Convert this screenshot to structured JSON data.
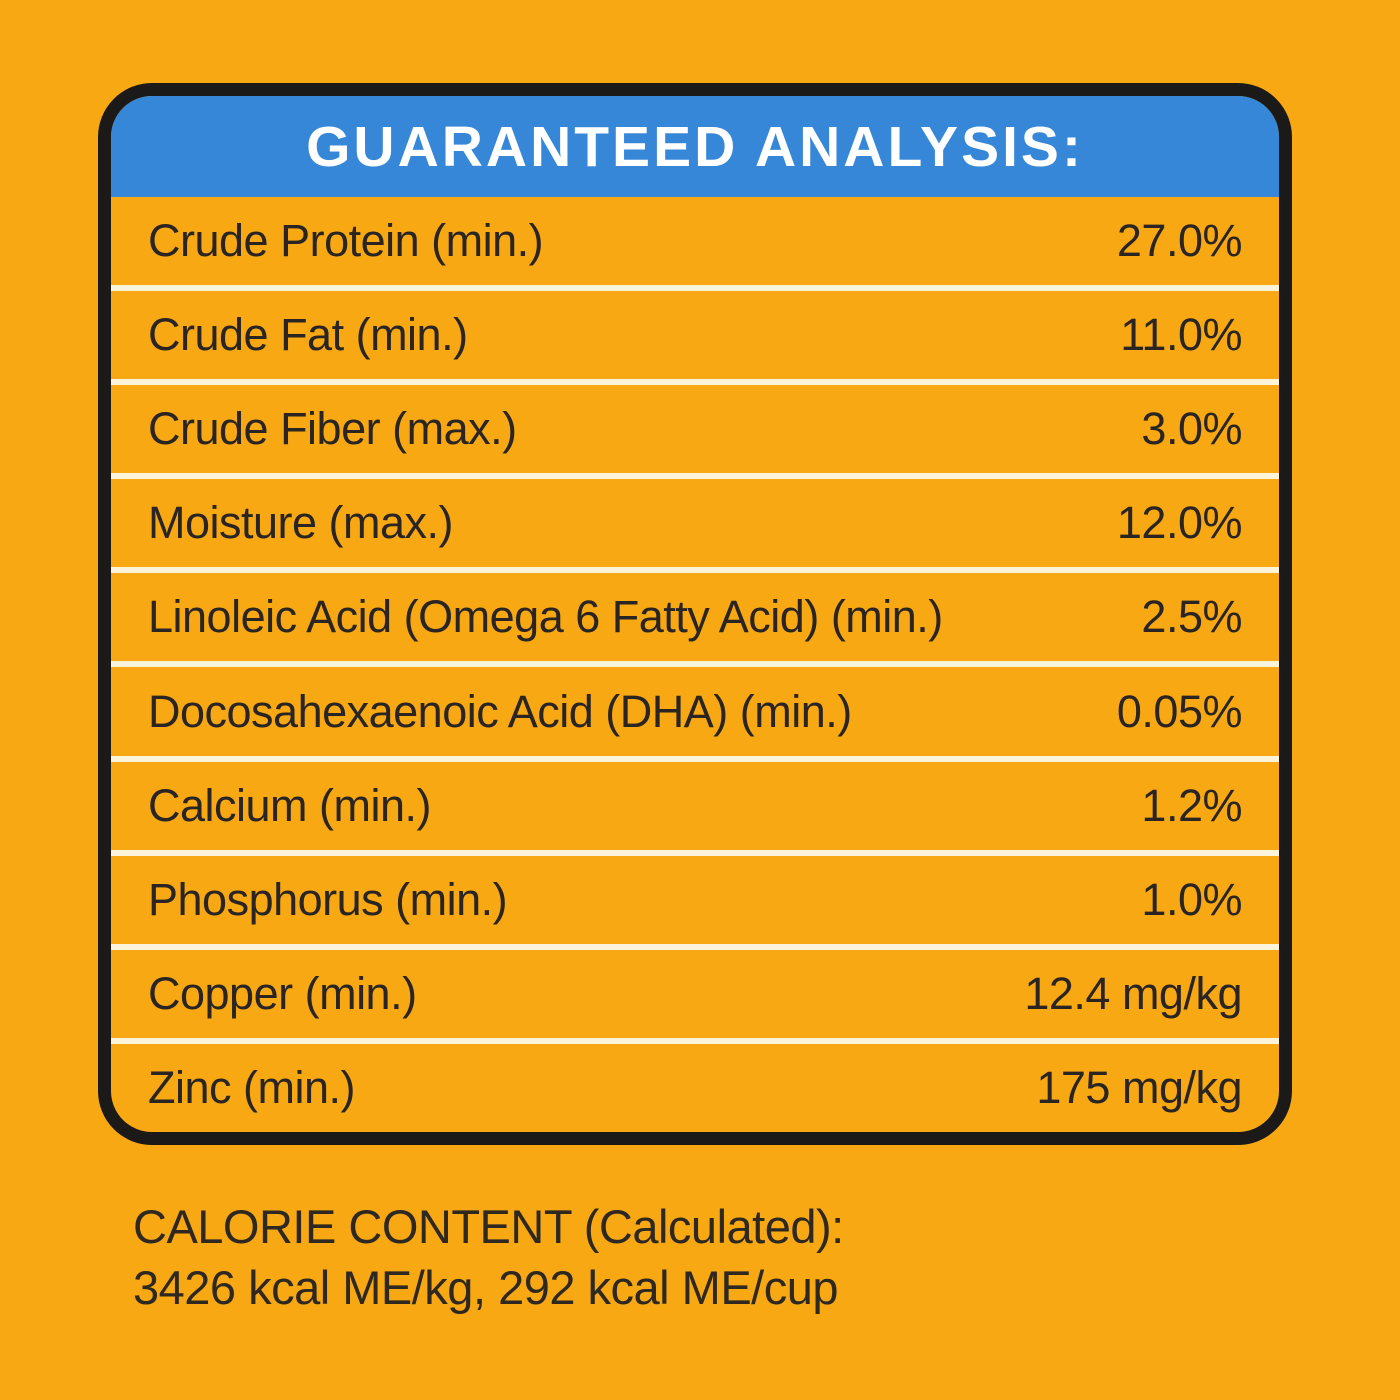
{
  "colors": {
    "background": "#F7A812",
    "header_background": "#3787D8",
    "header_text": "#FFFFFF",
    "row_text": "#2A2522",
    "row_separator": "#FBF4DB",
    "panel_border": "#1C1A18"
  },
  "header": {
    "title": "GUARANTEED ANALYSIS:"
  },
  "analysis": {
    "rows": [
      {
        "label": "Crude Protein (min.)",
        "value": "27.0%"
      },
      {
        "label": "Crude Fat (min.)",
        "value": "11.0%"
      },
      {
        "label": "Crude Fiber (max.)",
        "value": "3.0%"
      },
      {
        "label": "Moisture (max.)",
        "value": "12.0%"
      },
      {
        "label": "Linoleic Acid (Omega 6 Fatty Acid) (min.)",
        "value": "2.5%"
      },
      {
        "label": "Docosahexaenoic Acid (DHA) (min.)",
        "value": "0.05%"
      },
      {
        "label": "Calcium (min.)",
        "value": "1.2%"
      },
      {
        "label": "Phosphorus (min.)",
        "value": "1.0%"
      },
      {
        "label": "Copper (min.)",
        "value": "12.4 mg/kg"
      },
      {
        "label": "Zinc (min.)",
        "value": "175 mg/kg"
      }
    ]
  },
  "calorie_content": {
    "line1": "CALORIE CONTENT (Calculated):",
    "line2": "3426 kcal ME/kg, 292 kcal ME/cup"
  }
}
